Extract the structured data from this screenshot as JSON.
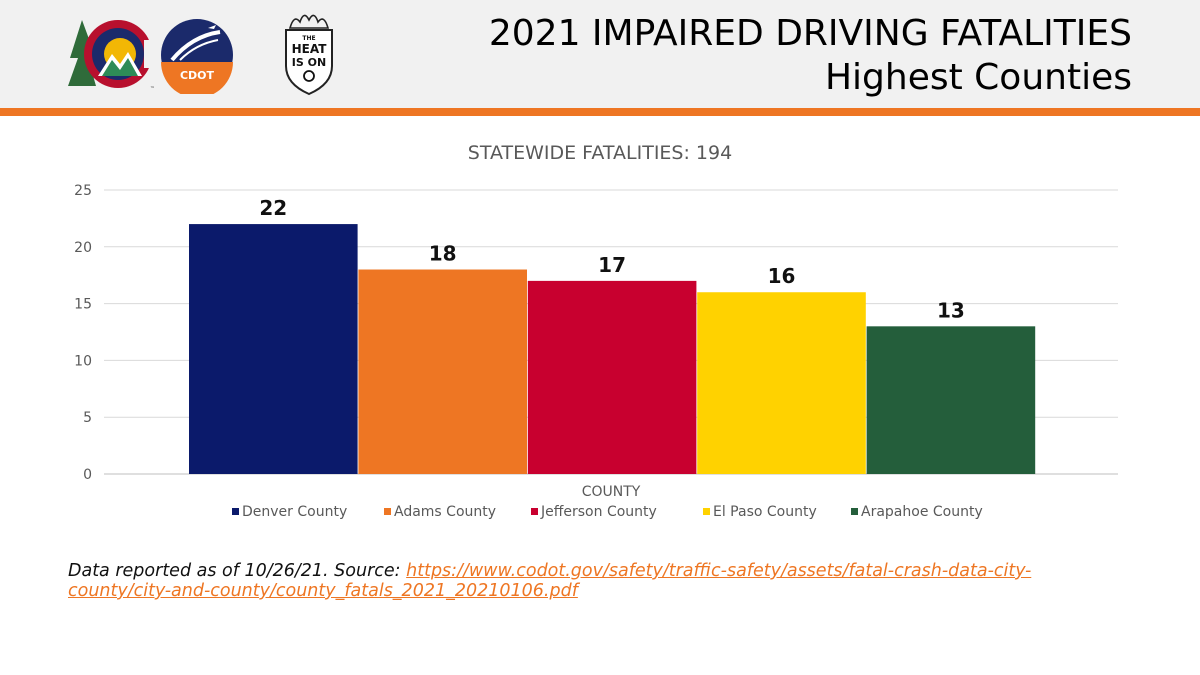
{
  "header": {
    "title_line1": "2021 IMPAIRED DRIVING FATALITIES",
    "title_line2": "Highest Counties",
    "logos": {
      "colorado": "colorado-c-logo",
      "cdot": "CDOT",
      "heat": {
        "line1": "THE",
        "line2": "HEAT",
        "line3": "IS ON"
      }
    }
  },
  "chart_data": {
    "type": "bar",
    "title": "STATEWIDE FATALITIES: 194",
    "xlabel": "COUNTY",
    "ylabel": "",
    "ylim": [
      0,
      25
    ],
    "yticks": [
      0,
      5,
      10,
      15,
      20,
      25
    ],
    "grid": true,
    "legend_position": "bottom",
    "series": [
      {
        "name": "Denver County",
        "value": 22,
        "color": "#0b1a6b"
      },
      {
        "name": "Adams County",
        "value": 18,
        "color": "#ee7623"
      },
      {
        "name": "Jefferson County",
        "value": 17,
        "color": "#c8002f"
      },
      {
        "name": "El Paso County",
        "value": 16,
        "color": "#ffd200"
      },
      {
        "name": "Arapahoe County",
        "value": 13,
        "color": "#245e3b"
      }
    ]
  },
  "footer": {
    "prefix": "Data reported as of 10/26/21. Source: ",
    "link": "https://www.codot.gov/safety/traffic-safety/assets/fatal-crash-data-city-county/city-and-county/county_fatals_2021_20210106.pdf"
  }
}
